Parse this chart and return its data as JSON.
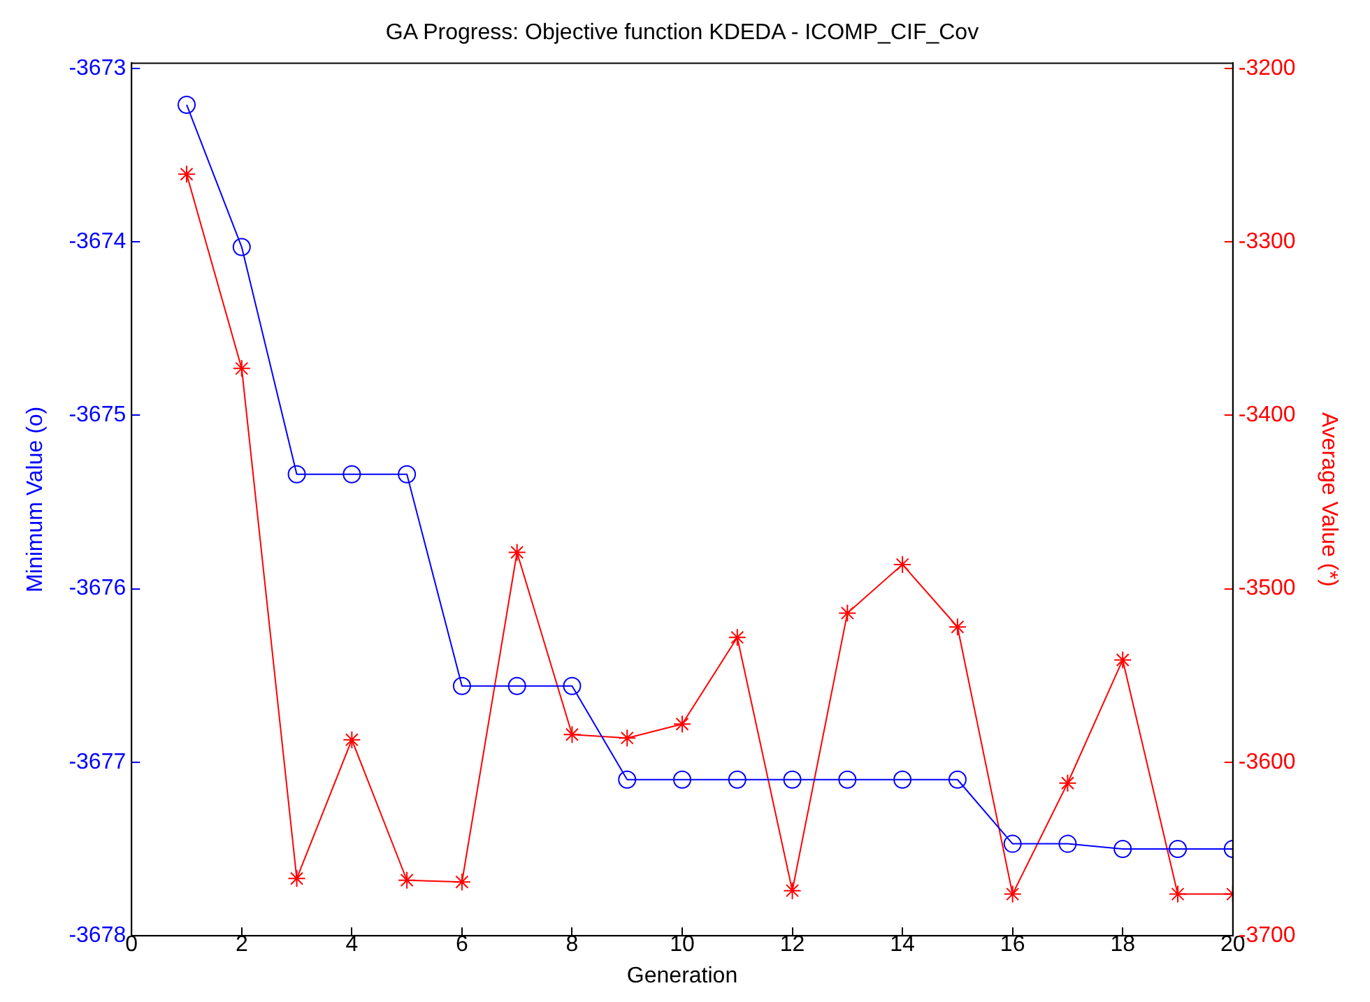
{
  "chart_data": {
    "type": "line",
    "title": "GA Progress: Objective function KDEDA - ICOMP_CIF_Cov",
    "xlabel": "Generation",
    "ylabel": "Minimum Value (o)",
    "y2label": "Average Value (*)",
    "x": [
      1,
      2,
      3,
      4,
      5,
      6,
      7,
      8,
      9,
      10,
      11,
      12,
      13,
      14,
      15,
      16,
      17,
      18,
      19,
      20
    ],
    "series": [
      {
        "color": "#0000ff",
        "marker": "circle",
        "values": [
          -3673.21,
          -3674.03,
          -3675.34,
          -3675.34,
          -3675.34,
          -3676.56,
          -3676.56,
          -3676.56,
          -3677.1,
          -3677.1,
          -3677.1,
          -3677.1,
          -3677.1,
          -3677.1,
          -3677.1,
          -3677.47,
          -3677.47,
          -3677.5,
          -3677.5,
          -3677.5
        ]
      },
      {
        "color": "#ff0000",
        "marker": "cross",
        "axis": "y2",
        "values": [
          -3261,
          -3373,
          -3667,
          -3587,
          -3668,
          -3669,
          -3479,
          -3584,
          -3586,
          -3578,
          -3528,
          -3674,
          -3514,
          -3486,
          -3522,
          -3676,
          -3612,
          -3541,
          -3676,
          -3676
        ]
      }
    ],
    "xlim": [
      0,
      20
    ],
    "xticks": [
      0,
      2,
      4,
      6,
      8,
      10,
      12,
      14,
      16,
      18,
      20
    ],
    "ylim": [
      -3678,
      -3672.97
    ],
    "yticks": [
      -3678,
      -3677,
      -3676,
      -3675,
      -3674,
      -3673
    ],
    "y2lim": [
      -3700,
      -3197
    ],
    "y2ticks": [
      -3700,
      -3600,
      -3500,
      -3400,
      -3300,
      -3200
    ],
    "grid": false,
    "legend": false
  }
}
